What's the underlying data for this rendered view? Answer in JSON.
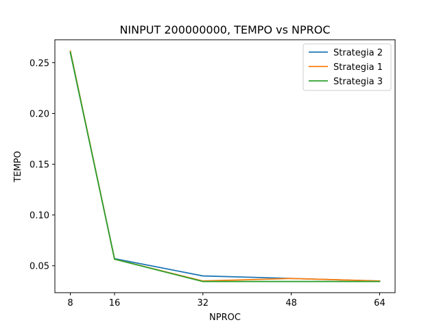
{
  "chart_data": {
    "type": "line",
    "title": "NINPUT 200000000, TEMPO vs NPROC",
    "xlabel": "NPROC",
    "ylabel": "TEMPO",
    "x": [
      8,
      16,
      32,
      48,
      64
    ],
    "xlim": [
      5.2,
      66.8
    ],
    "ylim": [
      0.0235,
      0.2726
    ],
    "xticks": [
      "8",
      "16",
      "32",
      "48",
      "64"
    ],
    "yticks": [
      "0.05",
      "0.10",
      "0.15",
      "0.20",
      "0.25"
    ],
    "grid": false,
    "legend_position": "top-right",
    "series": [
      {
        "name": "Strategia 2",
        "color": "#1f77b4",
        "values": [
          0.26,
          0.057,
          0.04,
          0.0375,
          0.035
        ]
      },
      {
        "name": "Strategia 1",
        "color": "#ff7f0e",
        "values": [
          0.2615,
          0.0565,
          0.035,
          0.0375,
          0.035
        ]
      },
      {
        "name": "Strategia 3",
        "color": "#2ca02c",
        "values": [
          0.2605,
          0.0565,
          0.0345,
          0.0345,
          0.0345
        ]
      }
    ]
  }
}
